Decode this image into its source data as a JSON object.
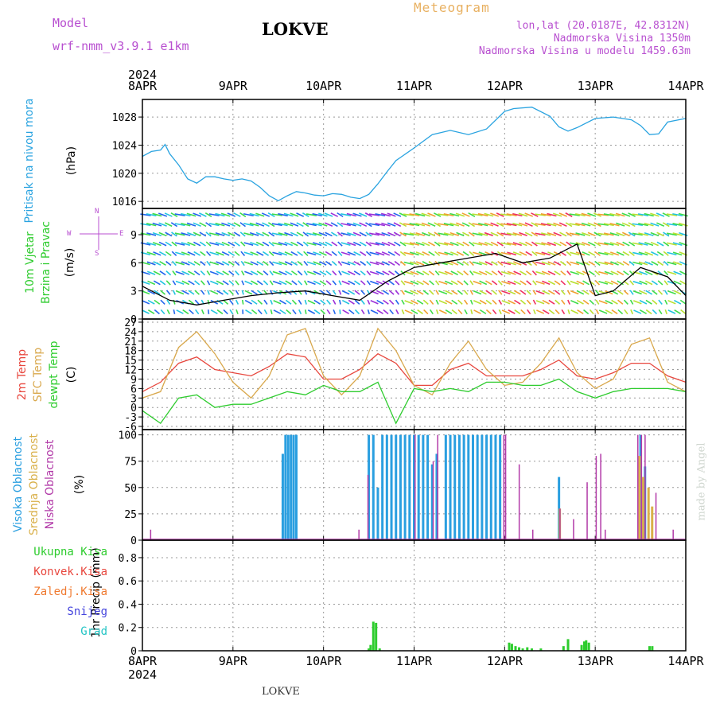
{
  "header": {
    "model_label": "Model",
    "model_name": "wrf-nmm_v3.9.1  e1km",
    "station": "LOKVE",
    "meteogram_label": "Meteogram",
    "lonlat": "lon,lat (20.0187E, 42.8312N)",
    "elevation": "Nadmorska Visina 1350m",
    "model_elevation": "Nadmorska Visina u modelu 1459.63m"
  },
  "footer": {
    "station": "LOKVE",
    "credit": "made by Angel"
  },
  "colors": {
    "pressure": "#29a3e0",
    "temp2m": "#e8473e",
    "sfc": "#d9a84c",
    "dew": "#2ecc2e",
    "cloud_high": "#2a9fe0",
    "cloud_mid": "#d9b04a",
    "cloud_low": "#b23aa8",
    "precip": "#2ecc2e",
    "purple_text": "#b84fd0",
    "orange_text": "#e8b060"
  },
  "chart_data": [
    {
      "type": "line",
      "panel": "pressure",
      "ylabel": "Pritisak na nivou mora",
      "unit": "(hPa)",
      "x_categories": [
        "8APR",
        "9APR",
        "10APR",
        "11APR",
        "12APR",
        "13APR",
        "14APR"
      ],
      "year": "2024",
      "yticks": [
        1016,
        1020,
        1024,
        1028
      ],
      "ylim": [
        1015,
        1030.5
      ],
      "grid": true,
      "series": [
        {
          "color": "#29a3e0",
          "x": [
            0,
            0.1,
            0.2,
            0.25,
            0.3,
            0.4,
            0.5,
            0.6,
            0.7,
            0.8,
            0.9,
            1.0,
            1.1,
            1.2,
            1.3,
            1.4,
            1.5,
            1.6,
            1.7,
            1.8,
            1.9,
            2.0,
            2.1,
            2.2,
            2.3,
            2.4,
            2.5,
            2.6,
            2.7,
            2.8,
            3.0,
            3.2,
            3.4,
            3.6,
            3.8,
            4.0,
            4.1,
            4.3,
            4.5,
            4.6,
            4.7,
            4.8,
            5.0,
            5.2,
            5.4,
            5.5,
            5.6,
            5.7,
            5.8,
            6.0
          ],
          "values": [
            1022.4,
            1023.1,
            1023.3,
            1024.1,
            1022.8,
            1021.2,
            1019.2,
            1018.6,
            1019.5,
            1019.5,
            1019.2,
            1019.0,
            1019.2,
            1018.9,
            1018.0,
            1016.8,
            1016.1,
            1016.8,
            1017.4,
            1017.2,
            1016.9,
            1016.8,
            1017.1,
            1017.0,
            1016.6,
            1016.4,
            1017.0,
            1018.5,
            1020.2,
            1021.8,
            1023.6,
            1025.5,
            1026.1,
            1025.5,
            1026.3,
            1028.8,
            1029.2,
            1029.4,
            1028.1,
            1026.6,
            1026.0,
            1026.5,
            1027.8,
            1028.0,
            1027.6,
            1026.8,
            1025.5,
            1025.6,
            1027.3,
            1027.8
          ]
        }
      ]
    },
    {
      "type": "line",
      "panel": "wind",
      "ylabel": [
        "10m Vjetar",
        "Brzina i Pravac"
      ],
      "unit": "(m/s)",
      "compass": [
        "W",
        "E",
        "N",
        "S"
      ],
      "yticks": [
        0,
        3,
        6,
        9
      ],
      "ylim": [
        0,
        11.8
      ],
      "grid": true,
      "series": [
        {
          "name": "speed",
          "color": "#000000",
          "x": [
            0,
            0.3,
            0.6,
            0.9,
            1.2,
            1.5,
            1.8,
            2.1,
            2.4,
            2.7,
            3.0,
            3.3,
            3.6,
            3.9,
            4.2,
            4.5,
            4.8,
            5.0,
            5.2,
            5.5,
            5.8,
            6.0
          ],
          "values": [
            3.5,
            2.0,
            1.5,
            2.0,
            2.5,
            2.8,
            3.0,
            2.5,
            2.0,
            4.0,
            5.5,
            6.0,
            6.5,
            7.0,
            6.0,
            6.5,
            8.0,
            2.5,
            3.0,
            5.5,
            4.5,
            2.5
          ]
        }
      ]
    },
    {
      "type": "line",
      "panel": "temperature",
      "ylabel": [
        "2m Temp",
        "SFC Temp",
        "dewpt Temp"
      ],
      "unit": "(C)",
      "yticks": [
        -6,
        -3,
        0,
        3,
        6,
        9,
        12,
        15,
        18,
        21,
        24,
        27
      ],
      "ylim": [
        -7,
        28
      ],
      "grid": true,
      "series": [
        {
          "name": "2m Temp",
          "color": "#e8473e",
          "x": [
            0,
            0.2,
            0.4,
            0.6,
            0.8,
            1.0,
            1.2,
            1.4,
            1.6,
            1.8,
            2.0,
            2.2,
            2.4,
            2.6,
            2.8,
            3.0,
            3.2,
            3.4,
            3.6,
            3.8,
            4.0,
            4.2,
            4.4,
            4.6,
            4.8,
            5.0,
            5.2,
            5.4,
            5.6,
            5.8,
            6.0
          ],
          "values": [
            5,
            8,
            14,
            16,
            12,
            11,
            10,
            13,
            17,
            16,
            9,
            9,
            12,
            17,
            14,
            7,
            7,
            12,
            14,
            10,
            10,
            10,
            12,
            15,
            10,
            9,
            11,
            14,
            14,
            10,
            8
          ]
        },
        {
          "name": "SFC Temp",
          "color": "#d9a84c",
          "x": [
            0,
            0.2,
            0.4,
            0.6,
            0.8,
            1.0,
            1.2,
            1.4,
            1.6,
            1.8,
            2.0,
            2.2,
            2.4,
            2.6,
            2.8,
            3.0,
            3.2,
            3.4,
            3.6,
            3.8,
            4.0,
            4.2,
            4.4,
            4.6,
            4.8,
            5.0,
            5.2,
            5.4,
            5.6,
            5.8,
            6.0
          ],
          "values": [
            3,
            5,
            19,
            24,
            17,
            8,
            3,
            10,
            23,
            25,
            10,
            4,
            10,
            25,
            18,
            7,
            4,
            14,
            21,
            12,
            7,
            8,
            14,
            22,
            11,
            6,
            9,
            20,
            22,
            8,
            5
          ]
        },
        {
          "name": "dewpt Temp",
          "color": "#2ecc2e",
          "x": [
            0,
            0.2,
            0.4,
            0.6,
            0.8,
            1.0,
            1.2,
            1.4,
            1.6,
            1.8,
            2.0,
            2.2,
            2.4,
            2.6,
            2.8,
            3.0,
            3.2,
            3.4,
            3.6,
            3.8,
            4.0,
            4.2,
            4.4,
            4.6,
            4.8,
            5.0,
            5.2,
            5.4,
            5.6,
            5.8,
            6.0
          ],
          "values": [
            -1,
            -5,
            3,
            4,
            0,
            1,
            1,
            3,
            5,
            4,
            7,
            5,
            5,
            8,
            -5,
            6,
            5,
            6,
            5,
            8,
            8,
            7,
            7,
            9,
            5,
            3,
            5,
            6,
            6,
            6,
            5
          ]
        }
      ]
    },
    {
      "type": "bar",
      "panel": "clouds",
      "ylabel": [
        "Visoka Oblacnost",
        "Srednja Oblacnost",
        "Niska Oblacnost"
      ],
      "unit": "(%)",
      "yticks": [
        0,
        25,
        50,
        75,
        100
      ],
      "ylim": [
        0,
        105
      ],
      "grid": true,
      "series": [
        {
          "name": "Visoka Oblacnost",
          "color": "#2a9fe0",
          "x": [
            1.55,
            1.58,
            1.61,
            1.64,
            1.67,
            1.7,
            2.5,
            2.55,
            2.6,
            2.65,
            2.7,
            2.75,
            2.8,
            2.85,
            2.9,
            2.95,
            3.0,
            3.05,
            3.1,
            3.15,
            3.2,
            3.25,
            3.35,
            3.4,
            3.45,
            3.5,
            3.55,
            3.6,
            3.65,
            3.7,
            3.75,
            3.8,
            3.85,
            3.9,
            3.95,
            4.6,
            5.5,
            5.55
          ],
          "values": [
            82,
            100,
            100,
            100,
            100,
            100,
            100,
            100,
            50,
            100,
            100,
            100,
            100,
            100,
            100,
            100,
            100,
            100,
            100,
            100,
            72,
            82,
            100,
            100,
            100,
            100,
            100,
            100,
            100,
            100,
            100,
            100,
            100,
            100,
            100,
            60,
            100,
            70
          ]
        },
        {
          "name": "Srednja Oblacnost",
          "color": "#d9b04a",
          "x": [
            4.6,
            5.48,
            5.52,
            5.58,
            5.62
          ],
          "values": [
            30,
            80,
            60,
            50,
            32
          ]
        },
        {
          "name": "Niska Oblacnost",
          "color": "#b23aa8",
          "x": [
            0.08,
            2.38,
            2.48,
            3.0,
            3.2,
            3.25,
            3.98,
            4.0,
            4.15,
            4.3,
            4.6,
            4.75,
            4.9,
            5.0,
            5.05,
            5.1,
            5.46,
            5.5,
            5.54,
            5.66,
            5.85
          ],
          "values": [
            10,
            10,
            62,
            100,
            75,
            100,
            100,
            100,
            72,
            10,
            30,
            20,
            55,
            80,
            82,
            10,
            100,
            100,
            100,
            45,
            10
          ]
        }
      ]
    },
    {
      "type": "bar",
      "panel": "precipitation",
      "ylabel": "1hr Precip (mm)",
      "legend": [
        "Ukupna Kisa",
        "Konvek.Kisa",
        "Zaledj.Kisa",
        "Snijeg",
        "Grad"
      ],
      "legend_colors": [
        "#2ecc2e",
        "#e8473e",
        "#f07a30",
        "#4444dd",
        "#22c4c4"
      ],
      "yticks": [
        0,
        0.2,
        0.4,
        0.6,
        0.8
      ],
      "ylim": [
        0,
        0.95
      ],
      "grid": true,
      "series": [
        {
          "name": "Ukupna Kisa",
          "color": "#2ecc2e",
          "x": [
            2.5,
            2.52,
            2.55,
            2.58,
            2.62,
            4.05,
            4.08,
            4.12,
            4.16,
            4.2,
            4.25,
            4.3,
            4.4,
            4.65,
            4.7,
            4.85,
            4.88,
            4.9,
            4.93,
            5.6,
            5.63
          ],
          "values": [
            0.02,
            0.05,
            0.25,
            0.24,
            0.02,
            0.07,
            0.06,
            0.04,
            0.03,
            0.02,
            0.03,
            0.02,
            0.02,
            0.04,
            0.1,
            0.05,
            0.08,
            0.09,
            0.07,
            0.04,
            0.04
          ]
        }
      ]
    }
  ]
}
